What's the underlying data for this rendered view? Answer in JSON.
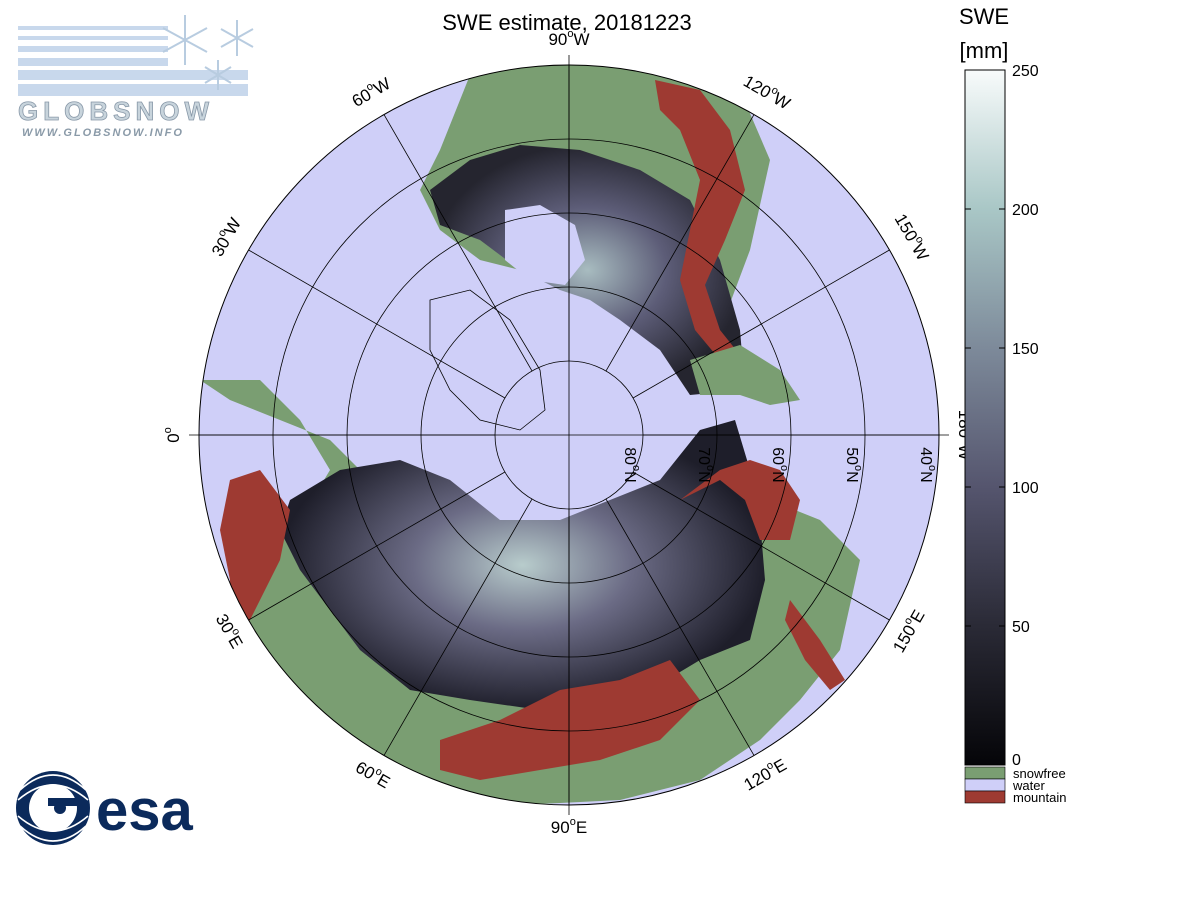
{
  "title": "SWE estimate, 20181223",
  "meridian_labels": [
    {
      "deg": "90",
      "dir": "W"
    },
    {
      "deg": "120",
      "dir": "W"
    },
    {
      "deg": "150",
      "dir": "W"
    },
    {
      "deg": "180",
      "dir": "W"
    },
    {
      "deg": "150",
      "dir": "E"
    },
    {
      "deg": "120",
      "dir": "E"
    },
    {
      "deg": "90",
      "dir": "E"
    },
    {
      "deg": "60",
      "dir": "E"
    },
    {
      "deg": "30",
      "dir": "E"
    },
    {
      "deg": "0",
      "dir": ""
    },
    {
      "deg": "30",
      "dir": "W"
    },
    {
      "deg": "60",
      "dir": "W"
    }
  ],
  "latitude_labels": [
    {
      "deg": "80",
      "dir": "N"
    },
    {
      "deg": "70",
      "dir": "N"
    },
    {
      "deg": "60",
      "dir": "N"
    },
    {
      "deg": "50",
      "dir": "N"
    },
    {
      "deg": "40",
      "dir": "N"
    }
  ],
  "colorbar": {
    "title_line1": "SWE",
    "title_line2": "[mm]",
    "min": 0,
    "max": 250,
    "ticks": [
      "0",
      "50",
      "100",
      "150",
      "200",
      "250"
    ],
    "categories": [
      {
        "label": "snowfree",
        "color": "#7a9e72"
      },
      {
        "label": "water",
        "color": "#cfcff8"
      },
      {
        "label": "mountain",
        "color": "#9e3a32"
      }
    ]
  },
  "colors": {
    "ocean": "#cfcff8",
    "land_snowfree": "#7a9e72",
    "mountain": "#9e3a32",
    "swe_low": "#0a0a10",
    "swe_mid": "#5b5b78",
    "swe_high": "#f8fbfb"
  },
  "logos": {
    "globsnow_word": "GLOBSNOW",
    "globsnow_url": "WWW.GLOBSNOW.INFO",
    "esa_word": "esa"
  }
}
